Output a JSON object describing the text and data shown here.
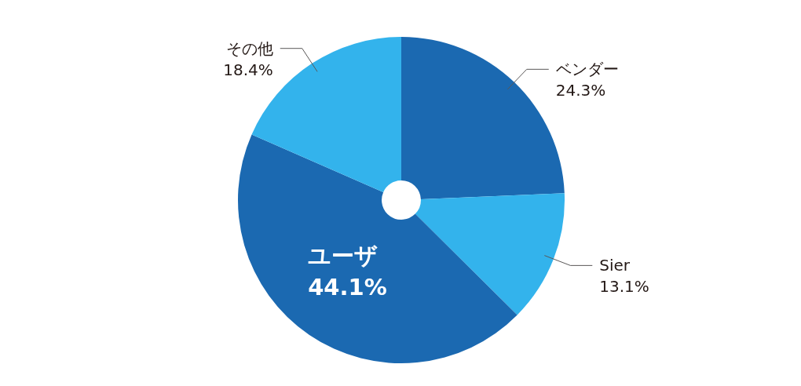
{
  "chart_data": {
    "type": "pie",
    "categories": [
      "ベンダー",
      "Sier",
      "ユーザ",
      "その他"
    ],
    "values": [
      24.3,
      13.1,
      44.1,
      18.4
    ],
    "colors": [
      "#1b69b1",
      "#33b3ec",
      "#1b69b1",
      "#33b3ec"
    ],
    "value_labels": [
      "24.3%",
      "13.1%",
      "44.1%",
      "18.4%"
    ]
  }
}
